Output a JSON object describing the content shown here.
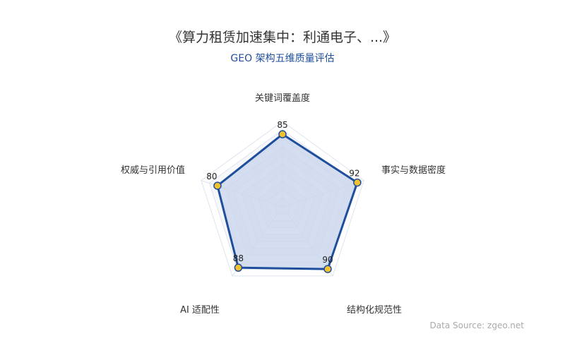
{
  "chart_data": {
    "type": "radar",
    "title": "《算力租赁加速集中：利通电子、...》",
    "subtitle": "GEO 架构五维质量评估",
    "indicators": [
      "关键词覆盖度",
      "事实与数据密度",
      "结构化规范性",
      "AI 适配性",
      "权威与引用价值"
    ],
    "max": 100,
    "values": [
      85,
      92,
      90,
      88,
      80
    ],
    "split_number": 10,
    "colors": {
      "line": "#1f4e9c",
      "fill": "#c9d6ec",
      "point": "#f2c12e",
      "grid": "#dde3ee"
    }
  },
  "footer": {
    "source": "Data Source: zgeo.net"
  }
}
